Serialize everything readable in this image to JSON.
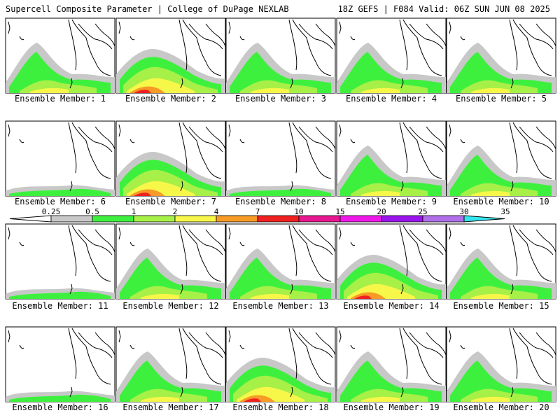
{
  "header": {
    "left": "Supercell Composite Parameter | College of DuPage NEXLAB",
    "right": "18Z GEFS | F084 Valid: 06Z SUN JUN 08 2025"
  },
  "member_prefix": "Ensemble Member: ",
  "members": [
    1,
    2,
    3,
    4,
    5,
    6,
    7,
    8,
    9,
    10,
    11,
    12,
    13,
    14,
    15,
    16,
    17,
    18,
    19,
    20
  ],
  "colorbar": {
    "ticks": [
      "0.25",
      "0.5",
      "1",
      "2",
      "4",
      "7",
      "10",
      "15",
      "20",
      "25",
      "30",
      "35"
    ],
    "colors": [
      "#c8c8c8",
      "#3ef03e",
      "#a6f047",
      "#f7f74a",
      "#f79a26",
      "#f02020",
      "#e8168f",
      "#f018e8",
      "#9a14ee",
      "#b06ee8",
      "#33e6ef"
    ]
  },
  "map": {
    "outline_color": "#000000",
    "intensity": {
      "1": "moderate",
      "2": "strong",
      "3": "moderate",
      "4": "moderate",
      "5": "moderate",
      "6": "weak",
      "7": "strong",
      "8": "weak",
      "9": "moderate",
      "10": "moderate",
      "11": "weak",
      "12": "moderate",
      "13": "moderate",
      "14": "strong",
      "15": "moderate",
      "16": "weak",
      "17": "moderate",
      "18": "strong",
      "19": "moderate",
      "20": "moderate"
    }
  }
}
